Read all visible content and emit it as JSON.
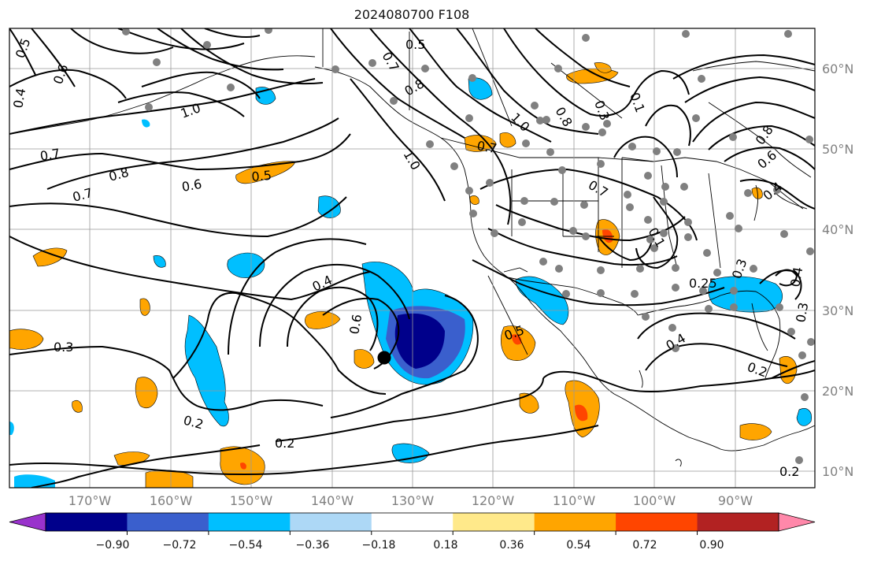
{
  "title": "2024080700 F108",
  "lat_labels": [
    "60°N",
    "50°N",
    "40°N",
    "30°N",
    "20°N",
    "10°N"
  ],
  "lon_labels": [
    "170°W",
    "160°W",
    "150°W",
    "140°W",
    "130°W",
    "120°W",
    "110°W",
    "100°W",
    "90°W"
  ],
  "colorbar": {
    "ticks": [
      "−0.90",
      "−0.72",
      "−0.54",
      "−0.36",
      "−0.18",
      "0.18",
      "0.36",
      "0.54",
      "0.72",
      "0.90"
    ],
    "colors": [
      "#9932cc",
      "#00008b",
      "#3a5fcd",
      "#00bfff",
      "#add8f6",
      "#ffffff",
      "#ffe98a",
      "#ffa500",
      "#ff4500",
      "#b22222",
      "#ff88aa"
    ]
  },
  "contour_labels": [
    "0.5",
    "0.4",
    "0.7",
    "0.7",
    "0.8",
    "0.6",
    "0.5",
    "1.0",
    "0.6",
    "0.7",
    "0.8",
    "1.0",
    "0.8",
    "1.0",
    "0.7",
    "0.3",
    "0.1",
    "0.5",
    "0.8",
    "0.6",
    "0.4",
    "0.7",
    "0.1",
    "0.4",
    "0.6",
    "0.3",
    "0.5",
    "0.25",
    "0.3",
    "0.4",
    "0.4",
    "0.3",
    "0.2",
    "0.2",
    "0.2",
    "0.2"
  ],
  "colors": {
    "gridline": "#999999",
    "contour": "#000000",
    "station_dot": "#808080",
    "axis_text": "#808080"
  }
}
